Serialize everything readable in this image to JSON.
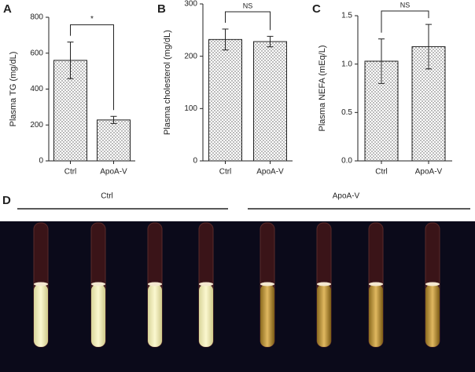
{
  "chart_data": [
    {
      "type": "bar",
      "panel_label": "A",
      "ylabel": "Plasma TG (mg/dL)",
      "categories": [
        "Ctrl",
        "ApoA-V"
      ],
      "values": [
        560,
        228
      ],
      "errors": [
        102,
        20
      ],
      "ylim": [
        0,
        800
      ],
      "yticks": [
        0,
        200,
        400,
        600,
        800
      ],
      "annotation": "*"
    },
    {
      "type": "bar",
      "panel_label": "B",
      "ylabel": "Plasma cholesterol (mg/dL)",
      "categories": [
        "Ctrl",
        "ApoA-V"
      ],
      "values": [
        232,
        228
      ],
      "errors": [
        20,
        10
      ],
      "ylim": [
        0,
        300
      ],
      "yticks": [
        0,
        100,
        200,
        300
      ],
      "annotation": "NS"
    },
    {
      "type": "bar",
      "panel_label": "C",
      "ylabel": "Plasma NEFA (mEq/L)",
      "categories": [
        "Ctrl",
        "ApoA-V"
      ],
      "values": [
        1.03,
        1.18
      ],
      "errors": [
        0.23,
        0.23
      ],
      "ylim": [
        0,
        1.5
      ],
      "yticks": [
        {
          "value": 0,
          "label": "0.0"
        },
        {
          "value": 0.5,
          "label": "0.5"
        },
        {
          "value": 1,
          "label": "1.0"
        },
        {
          "value": 1.5,
          "label": "1.5"
        }
      ],
      "annotation": "NS"
    }
  ],
  "photo_panel": {
    "panel_label": "D",
    "groups": [
      "Ctrl",
      "ApoA-V"
    ]
  }
}
